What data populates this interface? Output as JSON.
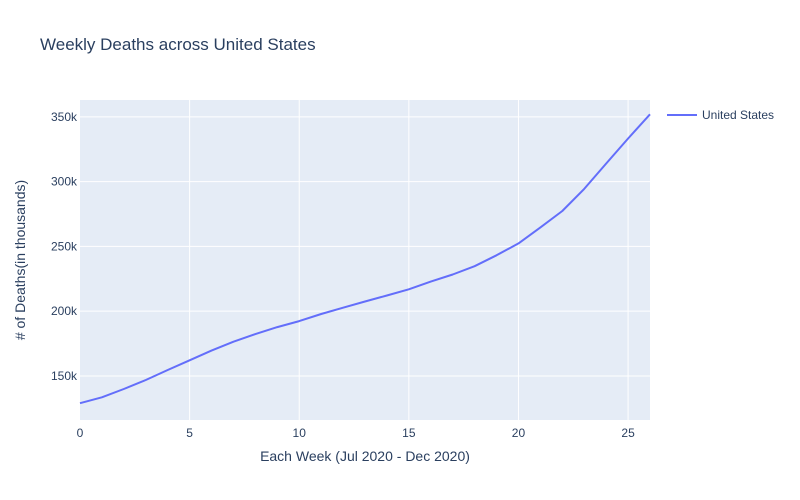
{
  "chart_data": {
    "type": "line",
    "title": "Weekly Deaths across United States",
    "xlabel": "Each Week (Jul 2020 - Dec 2020)",
    "ylabel": "# of Deaths(in thousands)",
    "xlim": [
      0,
      26
    ],
    "ylim": [
      116000,
      363000
    ],
    "x_ticks": [
      0,
      5,
      10,
      15,
      20,
      25
    ],
    "y_ticks": [
      150000,
      200000,
      250000,
      300000,
      350000
    ],
    "y_tick_labels": [
      "150k",
      "200k",
      "250k",
      "300k",
      "350k"
    ],
    "grid": true,
    "legend_position": "top-right",
    "series": [
      {
        "name": "United States",
        "color": "#636efa",
        "x": [
          0,
          1,
          2,
          3,
          4,
          5,
          6,
          7,
          8,
          9,
          10,
          11,
          12,
          13,
          14,
          15,
          16,
          17,
          18,
          19,
          20,
          21,
          22,
          23,
          24,
          25,
          26
        ],
        "values": [
          129000,
          133500,
          139900,
          146900,
          154600,
          162100,
          169600,
          176400,
          182300,
          187700,
          192300,
          197800,
          202700,
          207500,
          212100,
          216900,
          222800,
          228300,
          234700,
          243100,
          252300,
          264700,
          277300,
          294400,
          314000,
          333300,
          352000
        ]
      }
    ]
  }
}
